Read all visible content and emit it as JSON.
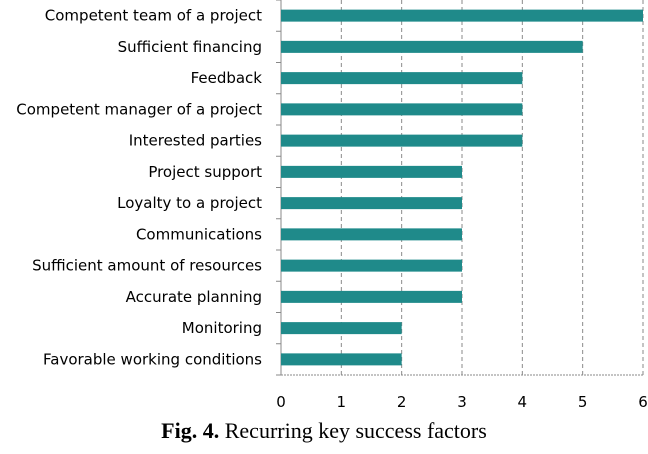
{
  "chart_data": {
    "type": "bar",
    "orientation": "horizontal",
    "categories": [
      "Competent team of a project",
      "Sufficient financing",
      "Feedback",
      "Competent manager of a project",
      "Interested parties",
      "Project support",
      "Loyalty to a project",
      "Communications",
      "Sufficient amount of resources",
      "Accurate planning",
      "Monitoring",
      "Favorable working conditions"
    ],
    "values": [
      6,
      5,
      4,
      4,
      4,
      3,
      3,
      3,
      3,
      3,
      2,
      2
    ],
    "xlim": [
      0,
      6
    ],
    "xticks": [
      "0",
      "1",
      "2",
      "3",
      "4",
      "5",
      "6"
    ],
    "grid": "vertical dashed",
    "bar_color": "#1f8a8a",
    "title": "",
    "xlabel": "",
    "ylabel": ""
  },
  "caption": {
    "prefix": "Fig. 4.",
    "text": " Recurring key success factors"
  }
}
